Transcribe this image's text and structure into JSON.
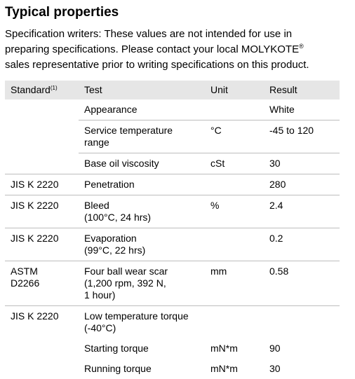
{
  "heading": "Typical properties",
  "intro": {
    "line1": "Specification writers: These values are not intended for use in",
    "line2": "preparing specifications. Please contact your local MOLYKOTE",
    "line2_mark": "®",
    "line3": "sales representative prior to writing specifications on this product."
  },
  "table": {
    "headers": [
      "Standard",
      "Test",
      "Unit",
      "Result"
    ],
    "header_standard_note": "(1)",
    "rows": [
      {
        "standard": "",
        "test": "Appearance",
        "unit": "",
        "result": "White"
      },
      {
        "standard": "",
        "test_lines": [
          "Service temperature",
          "range"
        ],
        "unit": "°C",
        "result": "-45 to 120"
      },
      {
        "standard": "",
        "test": "Base oil viscosity",
        "unit": "cSt",
        "result": "30"
      },
      {
        "standard": "JIS K 2220",
        "test": "Penetration",
        "unit": "",
        "result": "280"
      },
      {
        "standard": "JIS K 2220",
        "test_lines": [
          "Bleed",
          "(100°C, 24 hrs)"
        ],
        "unit": "%",
        "result": "2.4"
      },
      {
        "standard": "JIS K 2220",
        "test_lines": [
          "Evaporation",
          "(99°C, 22 hrs)"
        ],
        "unit": "",
        "result": "0.2"
      },
      {
        "standard_lines": [
          "ASTM",
          "D2266"
        ],
        "test_lines": [
          "Four ball wear scar",
          "(1,200 rpm, 392 N,",
          "1 hour)"
        ],
        "unit": "mm",
        "result": "0.58"
      },
      {
        "standard": "JIS K 2220",
        "test_lines": [
          "Low temperature torque",
          "(-40°C)"
        ],
        "unit": "",
        "result": ""
      },
      {
        "standard": "",
        "test": "Starting torque",
        "unit": "mN*m",
        "result": "90"
      },
      {
        "standard": "",
        "test": "Running torque",
        "unit": "mN*m",
        "result": "30"
      }
    ]
  }
}
